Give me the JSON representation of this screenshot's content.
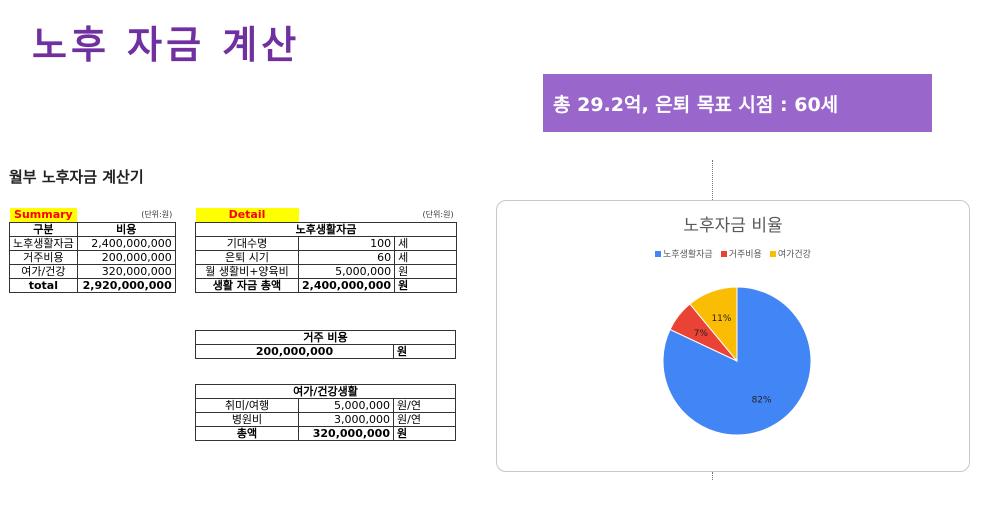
{
  "page": {
    "title": "노후 자금 계산",
    "banner": "총 29.2억, 은퇴 목표 시점  : 60세",
    "calculator_title": "월부 노후자금 계산기"
  },
  "summary": {
    "tag": "Summary",
    "unit": "(단위:원)",
    "headers": [
      "구분",
      "비용"
    ],
    "rows": [
      {
        "label": "노후생활자금",
        "value": "2,400,000,000"
      },
      {
        "label": "거주비용",
        "value": "200,000,000"
      },
      {
        "label": "여가/건강",
        "value": "320,000,000"
      }
    ],
    "total_label": "total",
    "total_value": "2,920,000,000"
  },
  "detail": {
    "tag": "Detail",
    "unit": "(단위:원)",
    "section_title": "노후생활자금",
    "rows": [
      {
        "label": "기대수명",
        "value": "100",
        "unit": "세"
      },
      {
        "label": "은퇴 시기",
        "value": "60",
        "unit": "세"
      },
      {
        "label": "월 생활비+양육비",
        "value": "5,000,000",
        "unit": "원"
      }
    ],
    "total_label": "생활 자금 총액",
    "total_value": "2,400,000,000",
    "total_unit": "원"
  },
  "housing": {
    "section_title": "거주 비용",
    "value": "200,000,000",
    "unit": "원"
  },
  "leisure": {
    "section_title": "여가/건강생활",
    "rows": [
      {
        "label": "취미/여행",
        "value": "5,000,000",
        "unit": "원/연"
      },
      {
        "label": "병원비",
        "value": "3,000,000",
        "unit": "원/연"
      }
    ],
    "total_label": "총액",
    "total_value": "320,000,000",
    "total_unit": "원"
  },
  "chart_data": {
    "type": "pie",
    "title": "노후자금 비율",
    "legend_position": "top",
    "series": [
      {
        "name": "노후생활자금",
        "value": 82,
        "label": "82%",
        "color": "#4285f4"
      },
      {
        "name": "거주비용",
        "value": 7,
        "label": "7%",
        "color": "#ea4335"
      },
      {
        "name": "여가건강",
        "value": 11,
        "label": "11%",
        "color": "#fbbc04"
      }
    ]
  }
}
